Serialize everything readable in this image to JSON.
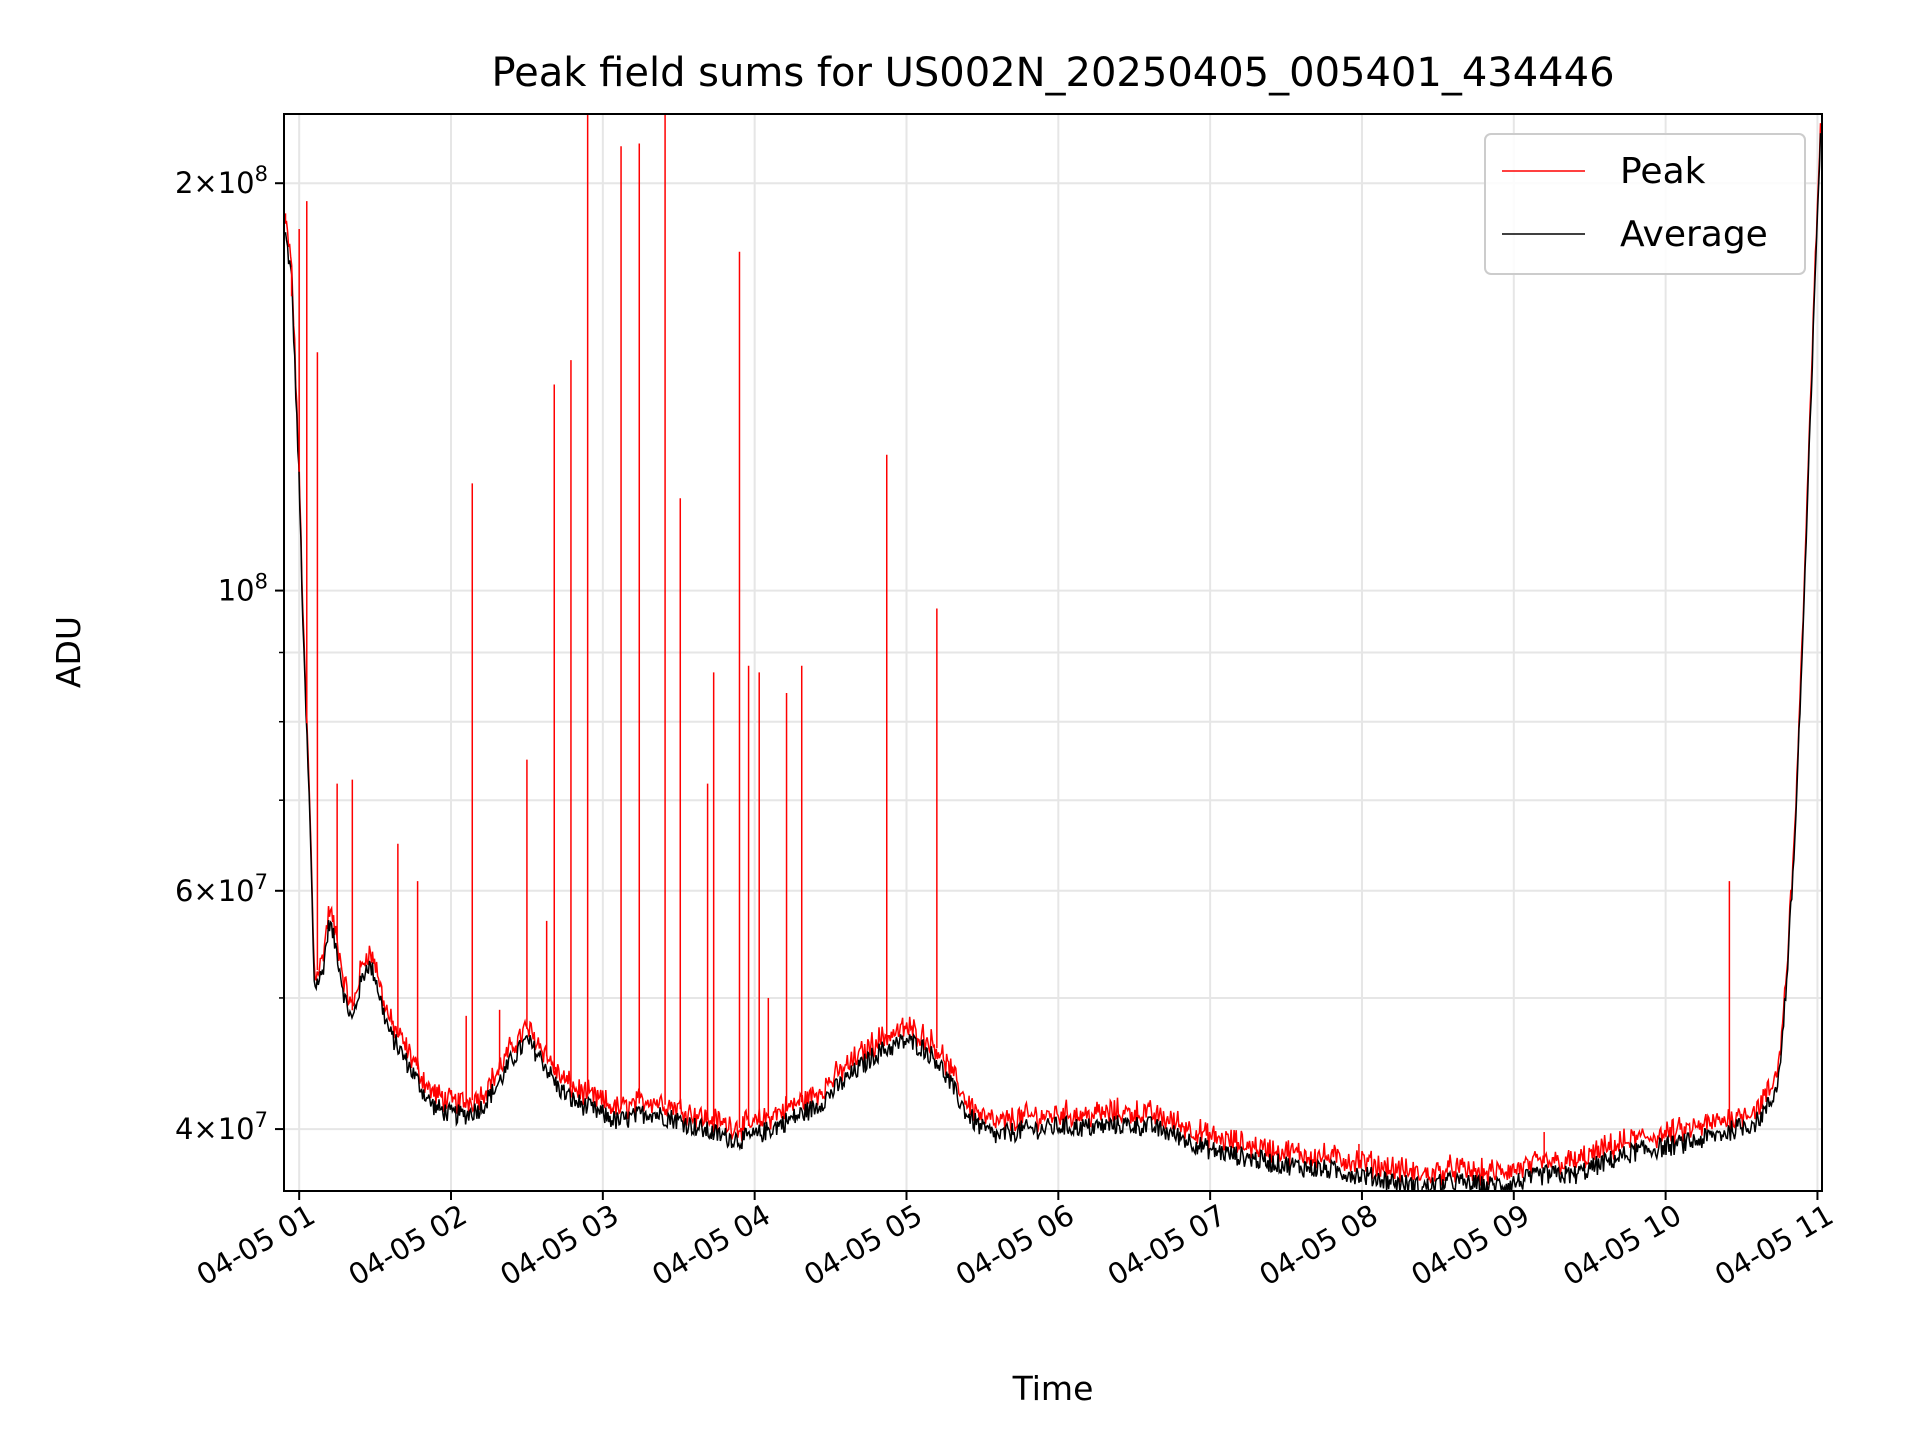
{
  "chart_data": {
    "type": "line",
    "title": "Peak field sums for US002N_20250405_005401_434446",
    "xlabel": "Time",
    "ylabel": "ADU",
    "y_scale": "log",
    "ylim": [
      36000000,
      225000000
    ],
    "xlim_hours": [
      0.9,
      11.03
    ],
    "grid": true,
    "legend_position": "top-right",
    "x_ticks": [
      {
        "hour": 1,
        "label": "04-05 01"
      },
      {
        "hour": 2,
        "label": "04-05 02"
      },
      {
        "hour": 3,
        "label": "04-05 03"
      },
      {
        "hour": 4,
        "label": "04-05 04"
      },
      {
        "hour": 5,
        "label": "04-05 05"
      },
      {
        "hour": 6,
        "label": "04-05 06"
      },
      {
        "hour": 7,
        "label": "04-05 07"
      },
      {
        "hour": 8,
        "label": "04-05 08"
      },
      {
        "hour": 9,
        "label": "04-05 09"
      },
      {
        "hour": 10,
        "label": "04-05 10"
      },
      {
        "hour": 11,
        "label": "04-05 11"
      }
    ],
    "y_ticks": [
      {
        "value": 40000000,
        "mantissa": "4",
        "exp": "7"
      },
      {
        "value": 60000000,
        "mantissa": "6",
        "exp": "7"
      },
      {
        "value": 100000000,
        "mantissa": "",
        "exp": "8"
      },
      {
        "value": 200000000,
        "mantissa": "2",
        "exp": "8"
      }
    ],
    "y_minor_ticks": [
      50000000,
      70000000,
      80000000,
      90000000
    ],
    "series": [
      {
        "name": "Average",
        "color": "#000000",
        "x_hours": [
          0.91,
          0.95,
          1.0,
          1.03,
          1.07,
          1.1,
          1.15,
          1.2,
          1.25,
          1.3,
          1.35,
          1.4,
          1.45,
          1.5,
          1.55,
          1.6,
          1.65,
          1.7,
          1.75,
          1.8,
          1.85,
          1.9,
          2.0,
          2.1,
          2.2,
          2.3,
          2.4,
          2.5,
          2.6,
          2.7,
          2.8,
          2.9,
          3.0,
          3.1,
          3.2,
          3.3,
          3.4,
          3.5,
          3.6,
          3.7,
          3.8,
          3.9,
          4.0,
          4.1,
          4.2,
          4.3,
          4.4,
          4.5,
          4.6,
          4.7,
          4.8,
          4.9,
          5.0,
          5.1,
          5.2,
          5.3,
          5.4,
          5.5,
          5.6,
          5.7,
          5.8,
          5.9,
          6.0,
          6.2,
          6.4,
          6.6,
          6.8,
          7.0,
          7.2,
          7.4,
          7.6,
          7.8,
          8.0,
          8.2,
          8.4,
          8.6,
          8.8,
          9.0,
          9.2,
          9.4,
          9.6,
          9.8,
          10.0,
          10.2,
          10.4,
          10.6,
          10.7,
          10.75,
          10.8,
          10.85,
          10.9,
          10.95,
          11.0,
          11.02
        ],
        "values": [
          183000000,
          170000000,
          120000000,
          90000000,
          68000000,
          51000000,
          52000000,
          57000000,
          54000000,
          50000000,
          48000000,
          51000000,
          53000000,
          52000000,
          49000000,
          47000000,
          46000000,
          45000000,
          44000000,
          43000000,
          42000000,
          41500000,
          41000000,
          41000000,
          41500000,
          43000000,
          45000000,
          46500000,
          45000000,
          43000000,
          42000000,
          41500000,
          41000000,
          40500000,
          40800000,
          41200000,
          40900000,
          40600000,
          40200000,
          39800000,
          39500000,
          39300000,
          39500000,
          40000000,
          40500000,
          41000000,
          41500000,
          42500000,
          43500000,
          44500000,
          45500000,
          46000000,
          46500000,
          46000000,
          45000000,
          43000000,
          41000000,
          40000000,
          39500000,
          39800000,
          40000000,
          40000000,
          40200000,
          40100000,
          40300000,
          40200000,
          39500000,
          38600000,
          38200000,
          37800000,
          37500000,
          37300000,
          37000000,
          36600000,
          36200000,
          36600000,
          36300000,
          36500000,
          37000000,
          37000000,
          37800000,
          38500000,
          38800000,
          39200000,
          39800000,
          40500000,
          42000000,
          44000000,
          52000000,
          65000000,
          90000000,
          130000000,
          190000000,
          218000000
        ]
      },
      {
        "name": "Peak",
        "color": "#ff0000",
        "spikes": [
          {
            "hour": 0.91,
            "value": 190000000
          },
          {
            "hour": 0.95,
            "value": 165000000
          },
          {
            "hour": 1.0,
            "value": 185000000
          },
          {
            "hour": 1.05,
            "value": 194000000
          },
          {
            "hour": 1.12,
            "value": 150000000
          },
          {
            "hour": 1.25,
            "value": 72000000
          },
          {
            "hour": 1.35,
            "value": 72500000
          },
          {
            "hour": 1.65,
            "value": 65000000
          },
          {
            "hour": 1.78,
            "value": 61000000
          },
          {
            "hour": 2.1,
            "value": 48500000
          },
          {
            "hour": 2.14,
            "value": 120000000
          },
          {
            "hour": 2.32,
            "value": 49000000
          },
          {
            "hour": 2.5,
            "value": 75000000
          },
          {
            "hour": 2.63,
            "value": 57000000
          },
          {
            "hour": 2.68,
            "value": 142000000
          },
          {
            "hour": 2.79,
            "value": 148000000
          },
          {
            "hour": 2.9,
            "value": 226000000
          },
          {
            "hour": 3.12,
            "value": 213000000
          },
          {
            "hour": 3.24,
            "value": 214000000
          },
          {
            "hour": 3.41,
            "value": 225000000
          },
          {
            "hour": 3.51,
            "value": 117000000
          },
          {
            "hour": 3.69,
            "value": 72000000
          },
          {
            "hour": 3.73,
            "value": 87000000
          },
          {
            "hour": 3.9,
            "value": 178000000
          },
          {
            "hour": 3.96,
            "value": 88000000
          },
          {
            "hour": 4.03,
            "value": 87000000
          },
          {
            "hour": 4.09,
            "value": 50000000
          },
          {
            "hour": 4.21,
            "value": 84000000
          },
          {
            "hour": 4.31,
            "value": 88000000
          },
          {
            "hour": 4.87,
            "value": 126000000
          },
          {
            "hour": 5.2,
            "value": 97000000
          },
          {
            "hour": 7.98,
            "value": 39000000
          },
          {
            "hour": 9.2,
            "value": 39800000
          },
          {
            "hour": 10.42,
            "value": 61000000
          }
        ]
      }
    ]
  }
}
